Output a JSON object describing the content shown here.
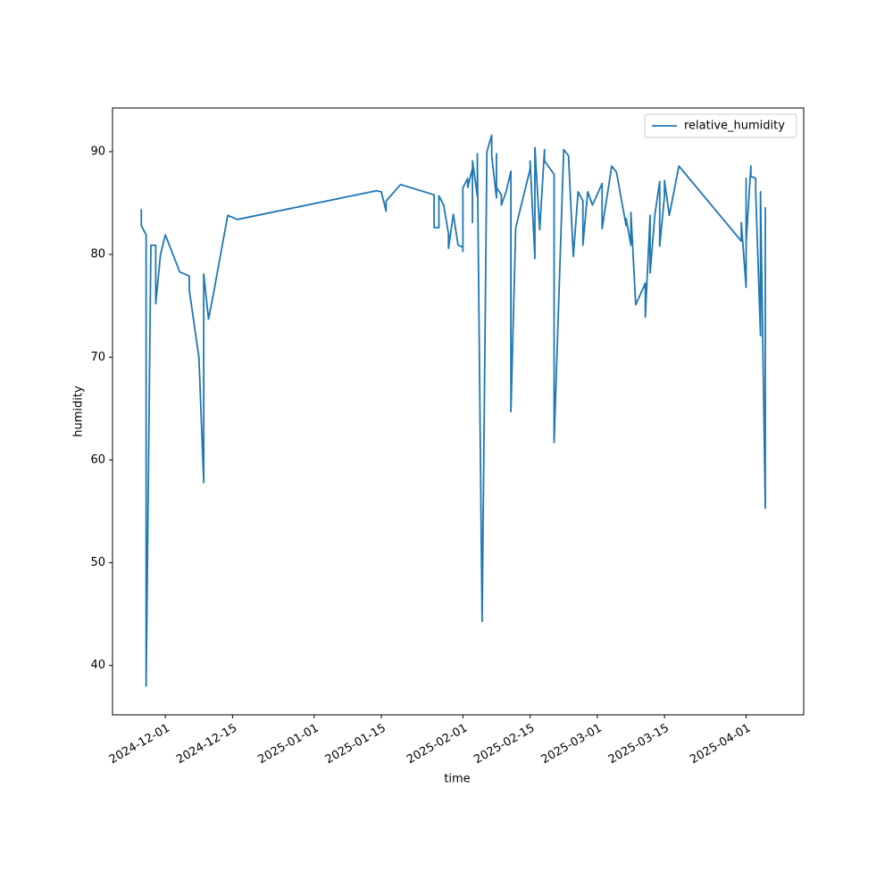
{
  "chart_data": {
    "type": "line",
    "xlabel": "time",
    "ylabel": "humidity",
    "x": [
      "2024-11-26",
      "2024-11-26",
      "2024-11-27",
      "2024-11-27",
      "2024-11-28",
      "2024-11-29",
      "2024-11-29",
      "2024-11-30",
      "2024-12-01",
      "2024-12-04",
      "2024-12-06",
      "2024-12-06",
      "2024-12-08",
      "2024-12-09",
      "2024-12-09",
      "2024-12-10",
      "2024-12-11",
      "2024-12-14",
      "2024-12-16",
      "2025-01-14",
      "2025-01-15",
      "2025-01-16",
      "2025-01-16",
      "2025-01-19",
      "2025-01-26",
      "2025-01-26",
      "2025-01-27",
      "2025-01-27",
      "2025-01-28",
      "2025-01-29",
      "2025-01-29",
      "2025-01-30",
      "2025-01-30",
      "2025-01-31",
      "2025-02-01",
      "2025-02-01",
      "2025-02-01",
      "2025-02-02",
      "2025-02-02",
      "2025-02-03",
      "2025-02-03",
      "2025-02-03",
      "2025-02-04",
      "2025-02-04",
      "2025-02-05",
      "2025-02-06",
      "2025-02-07",
      "2025-02-07",
      "2025-02-08",
      "2025-02-08",
      "2025-02-08",
      "2025-02-09",
      "2025-02-09",
      "2025-02-09",
      "2025-02-10",
      "2025-02-11",
      "2025-02-11",
      "2025-02-11",
      "2025-02-12",
      "2025-02-15",
      "2025-02-15",
      "2025-02-16",
      "2025-02-16",
      "2025-02-17",
      "2025-02-18",
      "2025-02-18",
      "2025-02-20",
      "2025-02-20",
      "2025-02-22",
      "2025-02-23",
      "2025-02-24",
      "2025-02-25",
      "2025-02-26",
      "2025-02-26",
      "2025-02-27",
      "2025-02-28",
      "2025-03-02",
      "2025-03-02",
      "2025-03-04",
      "2025-03-05",
      "2025-03-07",
      "2025-03-07",
      "2025-03-08",
      "2025-03-08",
      "2025-03-09",
      "2025-03-11",
      "2025-03-11",
      "2025-03-12",
      "2025-03-12",
      "2025-03-13",
      "2025-03-14",
      "2025-03-14",
      "2025-03-15",
      "2025-03-15",
      "2025-03-16",
      "2025-03-18",
      "2025-03-31",
      "2025-03-31",
      "2025-04-01",
      "2025-04-01",
      "2025-04-01",
      "2025-04-02",
      "2025-04-02",
      "2025-04-03",
      "2025-04-03",
      "2025-04-04",
      "2025-04-04",
      "2025-04-05",
      "2025-04-05"
    ],
    "series": [
      {
        "name": "relative_humidity",
        "color": "#1f77b4",
        "values": [
          84.4,
          82.8,
          81.9,
          38.0,
          80.9,
          80.9,
          75.2,
          80.0,
          81.9,
          78.3,
          77.9,
          76.5,
          70.0,
          57.8,
          78.1,
          73.7,
          76.1,
          83.8,
          83.4,
          86.2,
          86.1,
          84.2,
          85.2,
          86.8,
          85.8,
          82.6,
          82.6,
          85.7,
          84.8,
          82.0,
          80.6,
          83.9,
          83.9,
          80.9,
          80.7,
          80.3,
          86.5,
          87.4,
          86.5,
          88.4,
          83.1,
          89.1,
          85.7,
          89.8,
          44.3,
          90.0,
          91.6,
          89.6,
          85.5,
          89.8,
          86.5,
          85.8,
          85.5,
          84.8,
          86.1,
          88.1,
          86.1,
          64.7,
          82.6,
          88.3,
          89.1,
          79.6,
          90.4,
          82.4,
          90.2,
          89.1,
          87.8,
          61.7,
          90.2,
          89.6,
          79.8,
          86.1,
          85.2,
          80.9,
          86.1,
          84.8,
          86.9,
          82.5,
          88.6,
          88.0,
          82.8,
          83.5,
          80.9,
          84.1,
          75.1,
          77.2,
          73.9,
          83.8,
          78.2,
          83.9,
          87.1,
          80.8,
          85.7,
          87.2,
          83.8,
          88.6,
          81.3,
          83.1,
          76.8,
          87.4,
          81.1,
          88.6,
          87.6,
          87.4,
          86.1,
          72.1,
          86.1,
          55.3,
          84.6
        ]
      }
    ],
    "xlim": [
      "2024-11-20",
      "2025-04-13"
    ],
    "xticks": [
      "2024-12-01",
      "2024-12-15",
      "2025-01-01",
      "2025-01-15",
      "2025-02-01",
      "2025-02-15",
      "2025-03-01",
      "2025-03-15",
      "2025-04-01"
    ],
    "ylim": [
      35.2,
      94.25
    ],
    "yticks": [
      40,
      50,
      60,
      70,
      80,
      90
    ],
    "legend": "upper right",
    "grid": false
  }
}
